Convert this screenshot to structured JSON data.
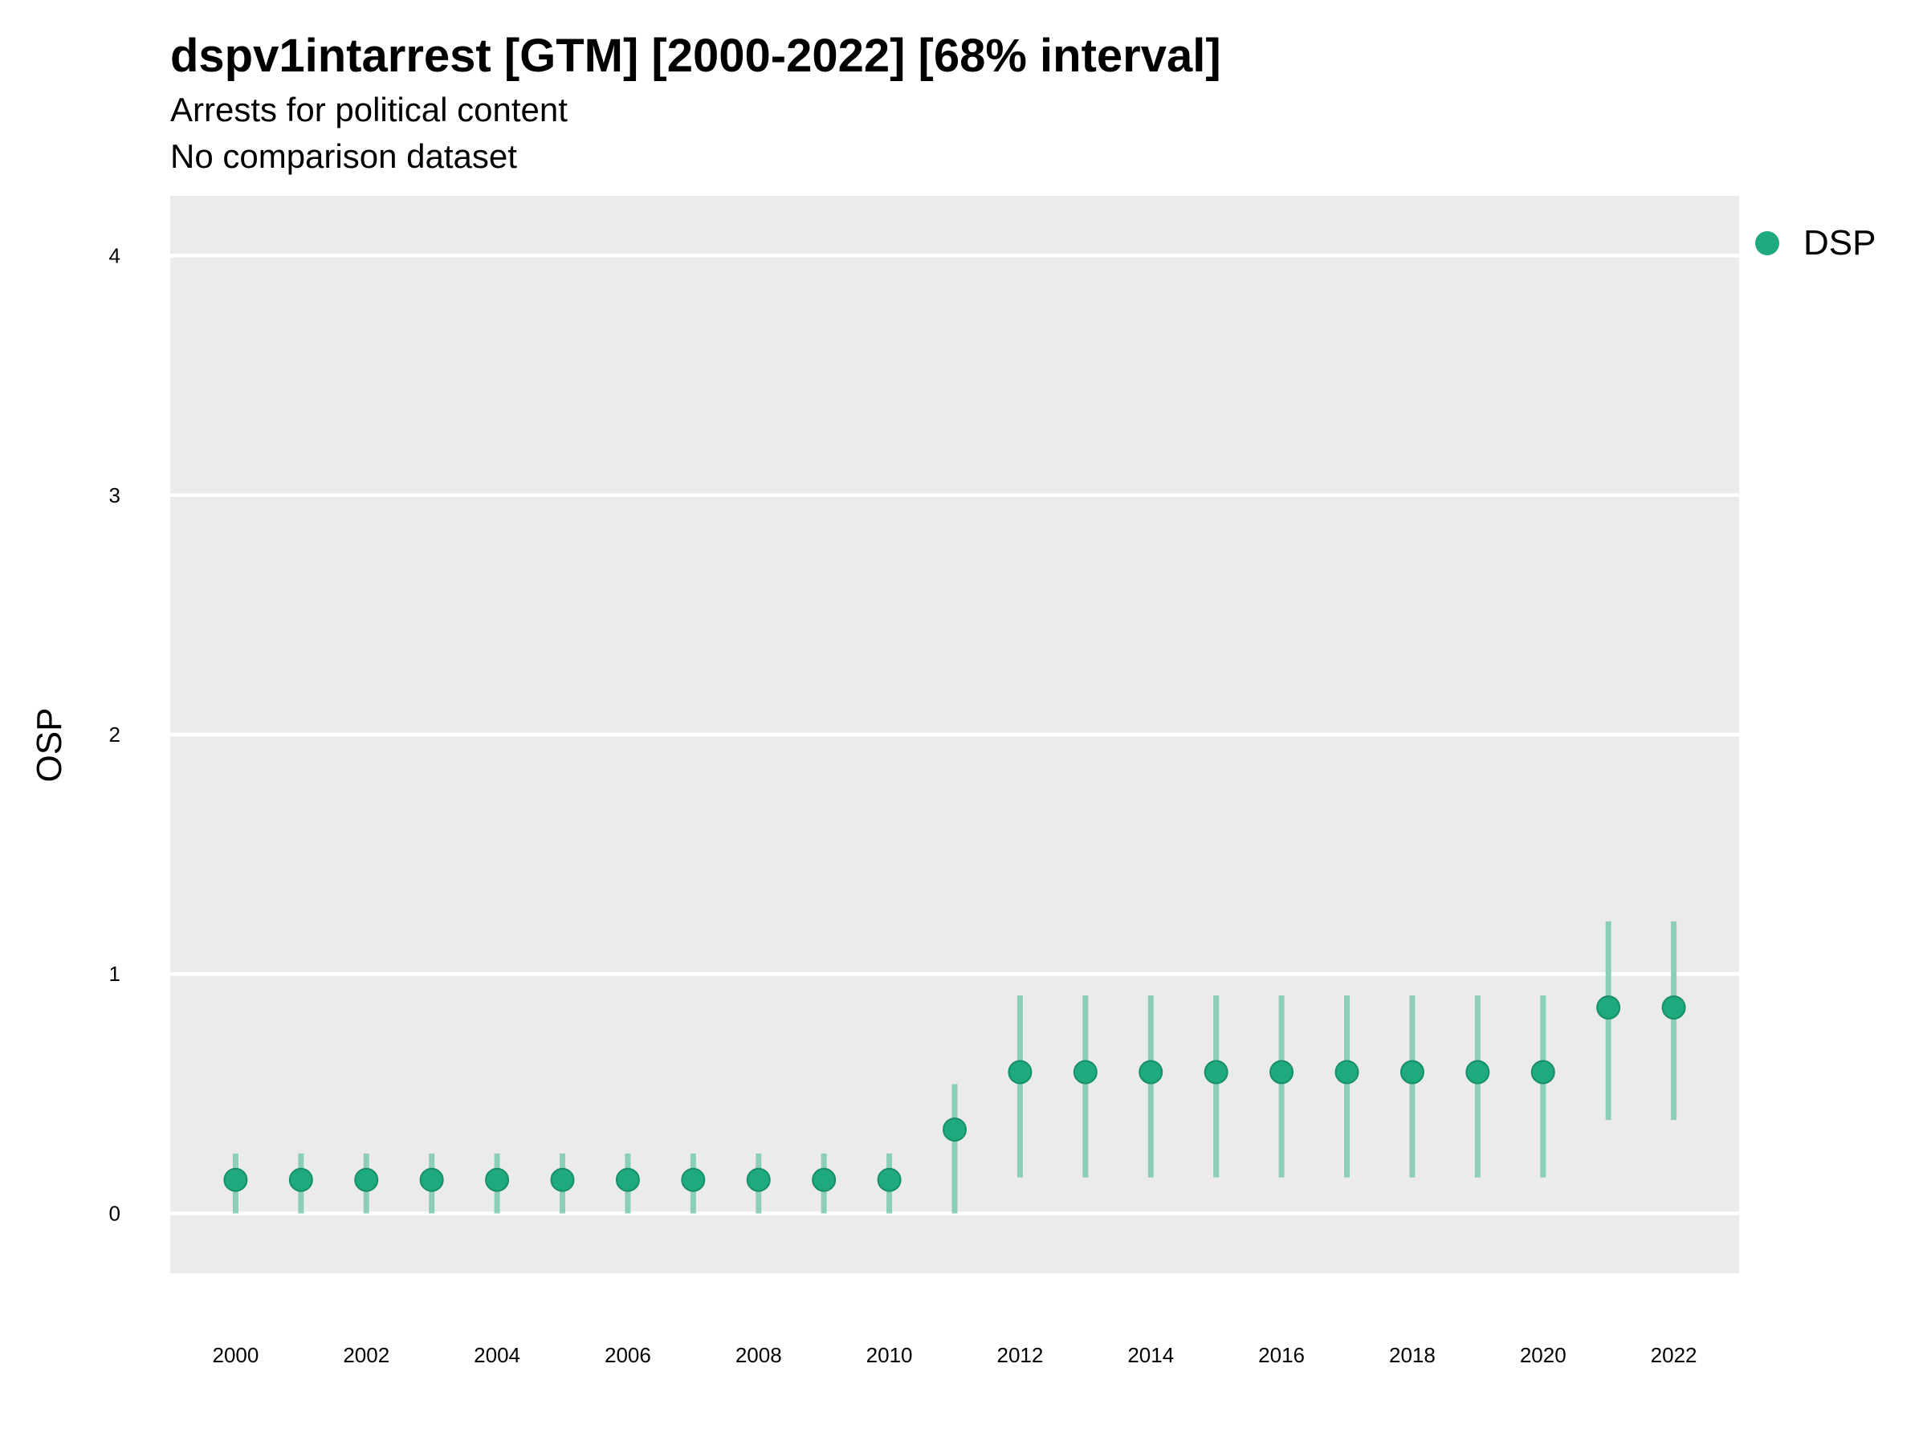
{
  "chart_data": {
    "type": "scatter",
    "title": "dspv1intarrest [GTM] [2000-2022] [68% interval]",
    "subtitle": "Arrests for political content",
    "subtitle2": "No comparison dataset",
    "xlabel": "",
    "ylabel": "OSP",
    "ylim": [
      -0.25,
      4.25
    ],
    "xlim": [
      1999.0,
      2023.0
    ],
    "y_ticks": [
      0,
      1,
      2,
      3,
      4
    ],
    "x_ticks": [
      2000,
      2002,
      2004,
      2006,
      2008,
      2010,
      2012,
      2014,
      2016,
      2018,
      2020,
      2022
    ],
    "grid": true,
    "legend_position": "right",
    "colors": {
      "series": "#1fa97f",
      "interval": "#8ccfb6",
      "panel": "#ebebeb",
      "grid": "#ffffff"
    },
    "series": [
      {
        "name": "DSP",
        "x": [
          2000,
          2001,
          2002,
          2003,
          2004,
          2005,
          2006,
          2007,
          2008,
          2009,
          2010,
          2011,
          2012,
          2013,
          2014,
          2015,
          2016,
          2017,
          2018,
          2019,
          2020,
          2021,
          2022
        ],
        "y": [
          0.14,
          0.14,
          0.14,
          0.14,
          0.14,
          0.14,
          0.14,
          0.14,
          0.14,
          0.14,
          0.14,
          0.35,
          0.59,
          0.59,
          0.59,
          0.59,
          0.59,
          0.59,
          0.59,
          0.59,
          0.59,
          0.86,
          0.86
        ],
        "lower": [
          0.0,
          0.0,
          0.0,
          0.0,
          0.0,
          0.0,
          0.0,
          0.0,
          0.0,
          0.0,
          0.0,
          0.0,
          0.15,
          0.15,
          0.15,
          0.15,
          0.15,
          0.15,
          0.15,
          0.15,
          0.15,
          0.39,
          0.39
        ],
        "upper": [
          0.25,
          0.25,
          0.25,
          0.25,
          0.25,
          0.25,
          0.25,
          0.25,
          0.25,
          0.25,
          0.25,
          0.54,
          0.91,
          0.91,
          0.91,
          0.91,
          0.91,
          0.91,
          0.91,
          0.91,
          0.91,
          1.22,
          1.22
        ]
      }
    ]
  }
}
